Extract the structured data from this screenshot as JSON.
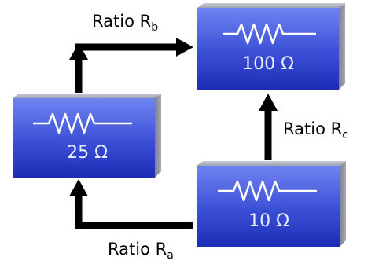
{
  "diagram": {
    "resistors": [
      {
        "id": "r100",
        "value": "100 Ω"
      },
      {
        "id": "r25",
        "value": "25 Ω"
      },
      {
        "id": "r10",
        "value": "10 Ω"
      }
    ],
    "ratios": [
      {
        "id": "rb",
        "prefix": "Ratio R",
        "subscript": "b"
      },
      {
        "id": "rc",
        "prefix": "Ratio R",
        "subscript": "c"
      },
      {
        "id": "ra",
        "prefix": "Ratio R",
        "subscript": "a"
      }
    ],
    "colors": {
      "box_face_top": "#6a7ff0",
      "box_face_bottom": "#1a2fb8",
      "box_side": "#8a8fa0",
      "box_top": "#b4b8c6",
      "symbol": "#ffffff",
      "arrow": "#000000"
    }
  }
}
